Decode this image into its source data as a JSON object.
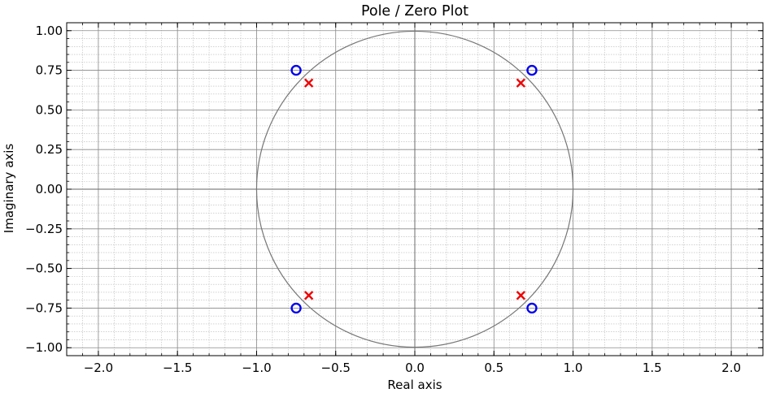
{
  "chart_data": {
    "type": "scatter",
    "title": "Pole / Zero Plot",
    "xlabel": "Real axis",
    "ylabel": "Imaginary axis",
    "xlim": [
      -2.2,
      2.2
    ],
    "ylim": [
      -1.05,
      1.05
    ],
    "xticks": [
      -2.0,
      -1.5,
      -1.0,
      -0.5,
      0.0,
      0.5,
      1.0,
      1.5,
      2.0
    ],
    "xtick_labels": [
      "−2.0",
      "−1.5",
      "−1.0",
      "−0.5",
      "0.0",
      "0.5",
      "1.0",
      "1.5",
      "2.0"
    ],
    "yticks": [
      -1.0,
      -0.75,
      -0.5,
      -0.25,
      0.0,
      0.25,
      0.5,
      0.75,
      1.0
    ],
    "ytick_labels": [
      "−1.00",
      "−0.75",
      "−0.50",
      "−0.25",
      "0.00",
      "0.25",
      "0.50",
      "0.75",
      "1.00"
    ],
    "grid": "major and minor",
    "unit_circle": {
      "radius": 1.0
    },
    "series": [
      {
        "marker": "o",
        "color": "#0000ee",
        "points": [
          [
            -0.75,
            0.75
          ],
          [
            0.74,
            0.75
          ],
          [
            -0.75,
            -0.75
          ],
          [
            0.74,
            -0.75
          ]
        ]
      },
      {
        "marker": "x",
        "color": "#ee0000",
        "points": [
          [
            -0.67,
            0.67
          ],
          [
            0.67,
            0.67
          ],
          [
            -0.67,
            -0.67
          ],
          [
            0.67,
            -0.67
          ]
        ]
      }
    ]
  }
}
